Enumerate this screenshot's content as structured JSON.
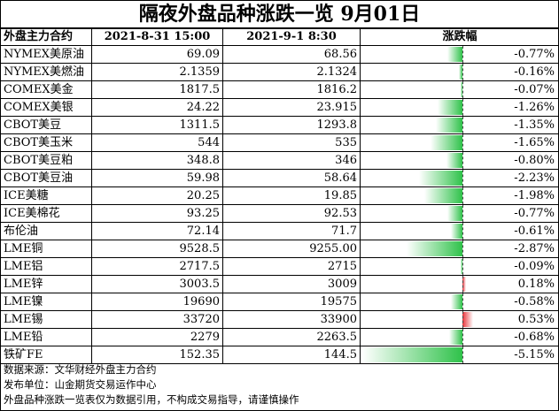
{
  "title": "隔夜外盘品种涨跌一览  9月01日",
  "headers": {
    "name": "外盘主力合约",
    "prev": "2021-8-31  15:00",
    "curr": "2021-9-1  8:30",
    "change": "涨跌幅"
  },
  "chart_data": {
    "type": "table",
    "title": "隔夜外盘品种涨跌一览  9月01日",
    "columns": [
      "外盘主力合约",
      "2021-8-31  15:00",
      "2021-9-1  8:30",
      "涨跌幅"
    ],
    "rows": [
      {
        "name": "NYMEX美原油",
        "prev": "69.09",
        "curr": "68.56",
        "change": -0.77,
        "change_label": "-0.77%"
      },
      {
        "name": "NYMEX美燃油",
        "prev": "2.1359",
        "curr": "2.1324",
        "change": -0.16,
        "change_label": "-0.16%"
      },
      {
        "name": "COMEX美金",
        "prev": "1817.5",
        "curr": "1816.2",
        "change": -0.07,
        "change_label": "-0.07%"
      },
      {
        "name": "COMEX美银",
        "prev": "24.22",
        "curr": "23.915",
        "change": -1.26,
        "change_label": "-1.26%"
      },
      {
        "name": "CBOT美豆",
        "prev": "1311.5",
        "curr": "1293.8",
        "change": -1.35,
        "change_label": "-1.35%"
      },
      {
        "name": "CBOT美玉米",
        "prev": "544",
        "curr": "535",
        "change": -1.65,
        "change_label": "-1.65%"
      },
      {
        "name": "CBOT美豆粕",
        "prev": "348.8",
        "curr": "346",
        "change": -0.8,
        "change_label": "-0.80%"
      },
      {
        "name": "CBOT美豆油",
        "prev": "59.98",
        "curr": "58.64",
        "change": -2.23,
        "change_label": "-2.23%"
      },
      {
        "name": "ICE美糖",
        "prev": "20.25",
        "curr": "19.85",
        "change": -1.98,
        "change_label": "-1.98%"
      },
      {
        "name": "ICE美棉花",
        "prev": "93.25",
        "curr": "92.53",
        "change": -0.77,
        "change_label": "-0.77%"
      },
      {
        "name": "布伦油",
        "prev": "72.14",
        "curr": "71.7",
        "change": -0.61,
        "change_label": "-0.61%"
      },
      {
        "name": "LME铜",
        "prev": "9528.5",
        "curr": "9255.00",
        "change": -2.87,
        "change_label": "-2.87%"
      },
      {
        "name": "LME铝",
        "prev": "2717.5",
        "curr": "2715",
        "change": -0.09,
        "change_label": "-0.09%"
      },
      {
        "name": "LME锌",
        "prev": "3003.5",
        "curr": "3009",
        "change": 0.18,
        "change_label": "0.18%"
      },
      {
        "name": "LME镍",
        "prev": "19690",
        "curr": "19575",
        "change": -0.58,
        "change_label": "-0.58%"
      },
      {
        "name": "LME锡",
        "prev": "33720",
        "curr": "33900",
        "change": 0.53,
        "change_label": "0.53%"
      },
      {
        "name": "LME铅",
        "prev": "2279",
        "curr": "2263.5",
        "change": -0.68,
        "change_label": "-0.68%"
      },
      {
        "name": "铁矿FE",
        "prev": "152.35",
        "curr": "144.5",
        "change": -5.15,
        "change_label": "-5.15%"
      }
    ],
    "bar_range": [
      -5.15,
      0.53
    ]
  },
  "colors": {
    "negative": "#2fc24a",
    "positive": "#e8333a"
  },
  "notes": [
    "数据来源：文华财经外盘主力合约",
    "发布单位：山金期货交易运作中心",
    "外盘品种涨跌一览表仅为数据引用，不构成交易指导，请谨慎操作"
  ]
}
